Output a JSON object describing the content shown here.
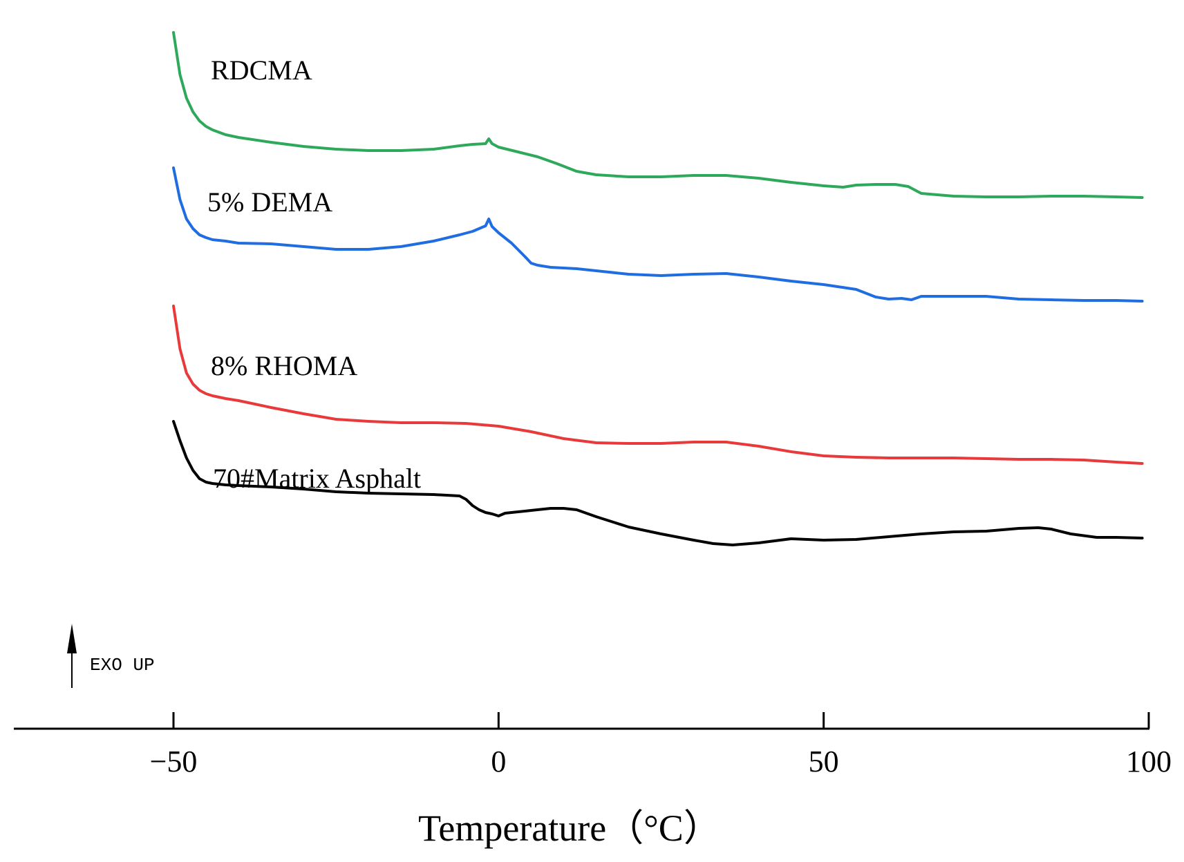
{
  "chart_data": {
    "type": "line",
    "title": "",
    "xlabel": "Temperature（°C）",
    "ylabel": "",
    "xlim": [
      -50,
      100
    ],
    "ylim": [
      0,
      10
    ],
    "x_ticks": [
      -50,
      0,
      50,
      100
    ],
    "x_tick_labels": [
      "−50",
      "0",
      "50",
      "100"
    ],
    "y_axis_shown": false,
    "annotation": "EXO UP",
    "legend": "inline labels",
    "series": [
      {
        "name": "RDCMA",
        "color": "#2ea85a",
        "x": [
          -50,
          -49,
          -48,
          -47,
          -46,
          -45,
          -44,
          -42,
          -40,
          -35,
          -30,
          -25,
          -20,
          -15,
          -10,
          -6,
          -4,
          -2,
          -1.5,
          -1,
          0,
          3,
          6,
          9,
          12,
          15,
          20,
          25,
          30,
          35,
          40,
          45,
          50,
          53,
          55,
          58,
          61,
          63,
          65,
          70,
          75,
          80,
          85,
          90,
          95,
          99
        ],
        "y": [
          9.78,
          9.17,
          8.83,
          8.63,
          8.5,
          8.42,
          8.37,
          8.3,
          8.26,
          8.19,
          8.13,
          8.09,
          8.07,
          8.07,
          8.09,
          8.14,
          8.16,
          8.17,
          8.24,
          8.17,
          8.12,
          8.05,
          7.98,
          7.88,
          7.77,
          7.72,
          7.69,
          7.69,
          7.71,
          7.71,
          7.67,
          7.61,
          7.56,
          7.54,
          7.57,
          7.58,
          7.58,
          7.55,
          7.45,
          7.41,
          7.4,
          7.4,
          7.41,
          7.41,
          7.4,
          7.39
        ]
      },
      {
        "name": "5% DEMA",
        "color": "#1f6de0",
        "x": [
          -50,
          -49,
          -48,
          -47,
          -46,
          -45,
          -44,
          -42,
          -40,
          -35,
          -30,
          -25,
          -20,
          -15,
          -10,
          -6,
          -4,
          -2,
          -1.5,
          -1,
          0,
          2,
          4,
          5,
          6,
          8,
          12,
          16,
          20,
          25,
          30,
          35,
          40,
          45,
          50,
          55,
          58,
          60,
          62,
          63.5,
          65,
          70,
          75,
          80,
          85,
          90,
          95,
          99
        ],
        "y": [
          7.82,
          7.36,
          7.08,
          6.94,
          6.85,
          6.81,
          6.78,
          6.76,
          6.73,
          6.72,
          6.68,
          6.64,
          6.64,
          6.68,
          6.76,
          6.85,
          6.9,
          6.98,
          7.08,
          6.97,
          6.88,
          6.73,
          6.54,
          6.44,
          6.41,
          6.38,
          6.36,
          6.32,
          6.28,
          6.26,
          6.28,
          6.29,
          6.24,
          6.18,
          6.13,
          6.06,
          5.95,
          5.92,
          5.93,
          5.91,
          5.96,
          5.96,
          5.96,
          5.92,
          5.91,
          5.9,
          5.9,
          5.89
        ]
      },
      {
        "name": "8% RHOMA",
        "color": "#e83a3a",
        "x": [
          -50,
          -49,
          -48,
          -47,
          -46,
          -45,
          -44,
          -42,
          -40,
          -35,
          -30,
          -25,
          -20,
          -15,
          -10,
          -5,
          0,
          5,
          10,
          15,
          20,
          25,
          30,
          35,
          40,
          45,
          50,
          55,
          60,
          65,
          70,
          75,
          80,
          85,
          90,
          95,
          99
        ],
        "y": [
          5.82,
          5.2,
          4.85,
          4.69,
          4.6,
          4.55,
          4.52,
          4.48,
          4.45,
          4.35,
          4.26,
          4.18,
          4.15,
          4.13,
          4.13,
          4.12,
          4.08,
          4.0,
          3.9,
          3.84,
          3.83,
          3.83,
          3.85,
          3.85,
          3.79,
          3.71,
          3.65,
          3.63,
          3.62,
          3.62,
          3.62,
          3.61,
          3.6,
          3.6,
          3.59,
          3.56,
          3.54
        ]
      },
      {
        "name": "70#Matrix Asphalt",
        "color": "#000000",
        "x": [
          -50,
          -49,
          -48,
          -47,
          -46,
          -45,
          -44,
          -42,
          -40,
          -35,
          -30,
          -25,
          -20,
          -15,
          -10,
          -6,
          -5,
          -4,
          -3,
          -2,
          -1,
          0,
          1,
          3,
          5,
          8,
          10,
          12,
          15,
          20,
          25,
          30,
          33,
          36,
          40,
          45,
          50,
          55,
          60,
          65,
          70,
          75,
          80,
          83,
          85,
          88,
          92,
          95,
          99
        ],
        "y": [
          4.15,
          3.87,
          3.62,
          3.44,
          3.32,
          3.27,
          3.25,
          3.23,
          3.22,
          3.2,
          3.17,
          3.13,
          3.11,
          3.1,
          3.09,
          3.07,
          3.02,
          2.93,
          2.87,
          2.83,
          2.81,
          2.78,
          2.82,
          2.84,
          2.86,
          2.89,
          2.89,
          2.87,
          2.77,
          2.62,
          2.52,
          2.43,
          2.38,
          2.36,
          2.39,
          2.45,
          2.43,
          2.44,
          2.48,
          2.52,
          2.55,
          2.56,
          2.6,
          2.61,
          2.59,
          2.52,
          2.47,
          2.47,
          2.46
        ]
      }
    ]
  }
}
